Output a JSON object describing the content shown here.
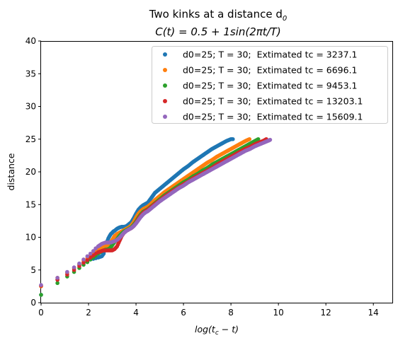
{
  "chart_data": {
    "type": "scatter",
    "title_line1": "Two kinks at a distance d",
    "title_line1_sub": "0",
    "title_line2": "C(t) = 0.5 + 1sin(2πt/T)",
    "xlabel": "log(t",
    "xlabel_sub": "c",
    "xlabel_tail": " − t)",
    "ylabel": "distance",
    "xlim": [
      0,
      14.8
    ],
    "ylim": [
      0,
      40
    ],
    "xticks": [
      0,
      2,
      4,
      6,
      8,
      10,
      12,
      14
    ],
    "yticks": [
      0,
      5,
      10,
      15,
      20,
      25,
      30,
      35,
      40
    ],
    "grid": false,
    "legend_position": "top-right",
    "series": [
      {
        "name": "d0=25; T = 30;  Extimated tc = 3237.1",
        "color": "#1f77b4",
        "x": [
          0.0,
          0.69,
          1.1,
          1.39,
          1.61,
          1.79,
          1.95,
          2.08,
          2.2,
          2.3,
          2.4,
          2.48,
          2.56,
          2.64,
          2.71,
          2.77,
          2.83,
          2.89,
          2.94,
          3.0,
          3.05,
          3.1,
          3.2,
          3.3,
          3.4,
          3.5,
          3.6,
          3.7,
          3.8,
          3.9,
          4.0,
          4.1,
          4.2,
          4.3,
          4.4,
          4.5,
          4.6,
          4.7,
          4.8,
          4.9,
          5.0,
          5.2,
          5.4,
          5.6,
          5.8,
          6.0,
          6.2,
          6.4,
          6.6,
          6.8,
          7.0,
          7.2,
          7.4,
          7.6,
          7.8,
          8.0,
          8.08
        ],
        "y": [
          1.2,
          3.5,
          4.6,
          5.3,
          5.8,
          6.1,
          6.4,
          6.6,
          6.7,
          6.8,
          6.9,
          7.0,
          7.1,
          7.5,
          8.3,
          9.2,
          9.8,
          10.2,
          10.5,
          10.7,
          10.9,
          11.0,
          11.3,
          11.5,
          11.6,
          11.6,
          11.7,
          12.0,
          12.3,
          12.9,
          13.6,
          14.2,
          14.6,
          14.9,
          15.1,
          15.3,
          15.8,
          16.3,
          16.8,
          17.1,
          17.4,
          18.0,
          18.6,
          19.2,
          19.8,
          20.4,
          20.9,
          21.5,
          22.0,
          22.5,
          23.0,
          23.5,
          23.9,
          24.3,
          24.7,
          25.0,
          25.0
        ]
      },
      {
        "name": "d0=25; T = 30;  Extimated tc = 6696.1",
        "color": "#ff7f0e",
        "x": [
          0.0,
          0.69,
          1.1,
          1.39,
          1.61,
          1.79,
          1.95,
          2.08,
          2.2,
          2.3,
          2.4,
          2.48,
          2.56,
          2.64,
          2.71,
          2.77,
          2.83,
          2.89,
          2.94,
          3.0,
          3.1,
          3.2,
          3.3,
          3.4,
          3.5,
          3.6,
          3.7,
          3.8,
          3.9,
          4.0,
          4.1,
          4.2,
          4.3,
          4.4,
          4.5,
          4.6,
          4.8,
          5.0,
          5.2,
          5.4,
          5.6,
          5.8,
          6.0,
          6.2,
          6.4,
          6.6,
          6.8,
          7.0,
          7.2,
          7.4,
          7.6,
          7.8,
          8.0,
          8.2,
          8.4,
          8.6,
          8.78
        ],
        "y": [
          2.5,
          3.8,
          4.6,
          5.3,
          5.9,
          6.4,
          6.8,
          7.2,
          7.6,
          7.9,
          8.2,
          8.4,
          8.5,
          8.6,
          8.7,
          8.7,
          8.8,
          9.0,
          9.3,
          9.6,
          10.2,
          10.5,
          10.7,
          10.9,
          11.1,
          11.3,
          11.5,
          11.8,
          12.3,
          13.0,
          13.6,
          14.0,
          14.3,
          14.5,
          14.7,
          15.0,
          15.7,
          16.3,
          16.9,
          17.4,
          17.9,
          18.4,
          18.9,
          19.4,
          19.9,
          20.4,
          20.9,
          21.4,
          21.8,
          22.3,
          22.7,
          23.1,
          23.5,
          23.9,
          24.3,
          24.7,
          25.0
        ]
      },
      {
        "name": "d0=25; T = 30;  Extimated tc = 9453.1",
        "color": "#2ca02c",
        "x": [
          0.0,
          0.69,
          1.1,
          1.39,
          1.61,
          1.79,
          1.95,
          2.08,
          2.2,
          2.3,
          2.4,
          2.48,
          2.56,
          2.64,
          2.71,
          2.77,
          2.83,
          2.89,
          2.94,
          3.0,
          3.1,
          3.2,
          3.3,
          3.4,
          3.5,
          3.6,
          3.7,
          3.8,
          3.9,
          4.0,
          4.1,
          4.2,
          4.3,
          4.4,
          4.5,
          4.6,
          4.8,
          5.0,
          5.2,
          5.4,
          5.6,
          5.8,
          6.0,
          6.2,
          6.4,
          6.6,
          6.8,
          7.0,
          7.2,
          7.4,
          7.6,
          7.8,
          8.0,
          8.2,
          8.4,
          8.6,
          8.8,
          9.0,
          9.15
        ],
        "y": [
          1.2,
          3.0,
          4.0,
          4.7,
          5.3,
          5.8,
          6.2,
          6.6,
          6.9,
          7.2,
          7.5,
          7.7,
          7.9,
          8.0,
          8.1,
          8.1,
          8.2,
          8.3,
          8.5,
          8.8,
          9.3,
          9.7,
          10.2,
          10.6,
          10.9,
          11.1,
          11.3,
          11.5,
          11.9,
          12.4,
          13.0,
          13.5,
          13.9,
          14.1,
          14.3,
          14.6,
          15.2,
          15.8,
          16.4,
          16.9,
          17.4,
          17.9,
          18.4,
          18.8,
          19.3,
          19.7,
          20.2,
          20.6,
          21.1,
          21.5,
          21.9,
          22.3,
          22.7,
          23.1,
          23.5,
          23.9,
          24.3,
          24.7,
          25.0
        ]
      },
      {
        "name": "d0=25; T = 30;  Extimated tc = 13203.1",
        "color": "#d62728",
        "x": [
          0.0,
          0.69,
          1.1,
          1.39,
          1.61,
          1.79,
          1.95,
          2.08,
          2.2,
          2.3,
          2.4,
          2.48,
          2.56,
          2.64,
          2.71,
          2.77,
          2.83,
          2.89,
          2.94,
          3.0,
          3.1,
          3.2,
          3.3,
          3.4,
          3.5,
          3.6,
          3.7,
          3.8,
          3.9,
          4.0,
          4.1,
          4.2,
          4.3,
          4.4,
          4.5,
          4.6,
          4.8,
          5.0,
          5.2,
          5.4,
          5.6,
          5.8,
          6.0,
          6.2,
          6.4,
          6.6,
          6.8,
          7.0,
          7.2,
          7.4,
          7.6,
          7.8,
          8.0,
          8.2,
          8.4,
          8.6,
          8.8,
          9.0,
          9.2,
          9.4,
          9.49
        ],
        "y": [
          2.6,
          3.5,
          4.3,
          5.0,
          5.6,
          6.1,
          6.5,
          6.9,
          7.2,
          7.5,
          7.7,
          7.8,
          7.9,
          8.0,
          8.0,
          8.0,
          8.0,
          8.0,
          8.0,
          8.0,
          8.2,
          8.6,
          9.4,
          10.2,
          10.7,
          11.0,
          11.2,
          11.4,
          11.7,
          12.2,
          12.8,
          13.3,
          13.7,
          14.0,
          14.2,
          14.5,
          15.1,
          15.6,
          16.2,
          16.7,
          17.2,
          17.6,
          18.1,
          18.5,
          19.0,
          19.4,
          19.8,
          20.2,
          20.6,
          21.1,
          21.5,
          21.9,
          22.3,
          22.7,
          23.1,
          23.5,
          23.8,
          24.2,
          24.5,
          24.8,
          25.0
        ]
      },
      {
        "name": "d0=25; T = 30;  Extimated tc = 15609.1",
        "color": "#9467bd",
        "x": [
          0.0,
          0.69,
          1.1,
          1.39,
          1.61,
          1.79,
          1.95,
          2.08,
          2.2,
          2.3,
          2.4,
          2.48,
          2.56,
          2.64,
          2.71,
          2.77,
          2.83,
          2.89,
          2.94,
          3.0,
          3.1,
          3.2,
          3.3,
          3.4,
          3.5,
          3.6,
          3.7,
          3.8,
          3.9,
          4.0,
          4.1,
          4.2,
          4.3,
          4.4,
          4.5,
          4.6,
          4.8,
          5.0,
          5.2,
          5.4,
          5.6,
          5.8,
          6.0,
          6.2,
          6.4,
          6.6,
          6.8,
          7.0,
          7.2,
          7.4,
          7.6,
          7.8,
          8.0,
          8.2,
          8.4,
          8.6,
          8.8,
          9.0,
          9.2,
          9.4,
          9.6,
          9.65
        ],
        "y": [
          2.7,
          3.8,
          4.7,
          5.4,
          6.0,
          6.6,
          7.1,
          7.5,
          7.9,
          8.3,
          8.6,
          8.8,
          9.0,
          9.1,
          9.2,
          9.2,
          9.2,
          9.2,
          9.2,
          9.3,
          9.4,
          9.6,
          9.9,
          10.3,
          10.7,
          11.0,
          11.2,
          11.4,
          11.7,
          12.1,
          12.6,
          13.1,
          13.5,
          13.8,
          14.0,
          14.3,
          14.9,
          15.5,
          16.0,
          16.5,
          17.0,
          17.5,
          17.9,
          18.4,
          18.8,
          19.2,
          19.6,
          20.0,
          20.4,
          20.8,
          21.2,
          21.6,
          22.0,
          22.4,
          22.8,
          23.2,
          23.5,
          23.9,
          24.2,
          24.5,
          24.8,
          24.9
        ]
      }
    ]
  }
}
